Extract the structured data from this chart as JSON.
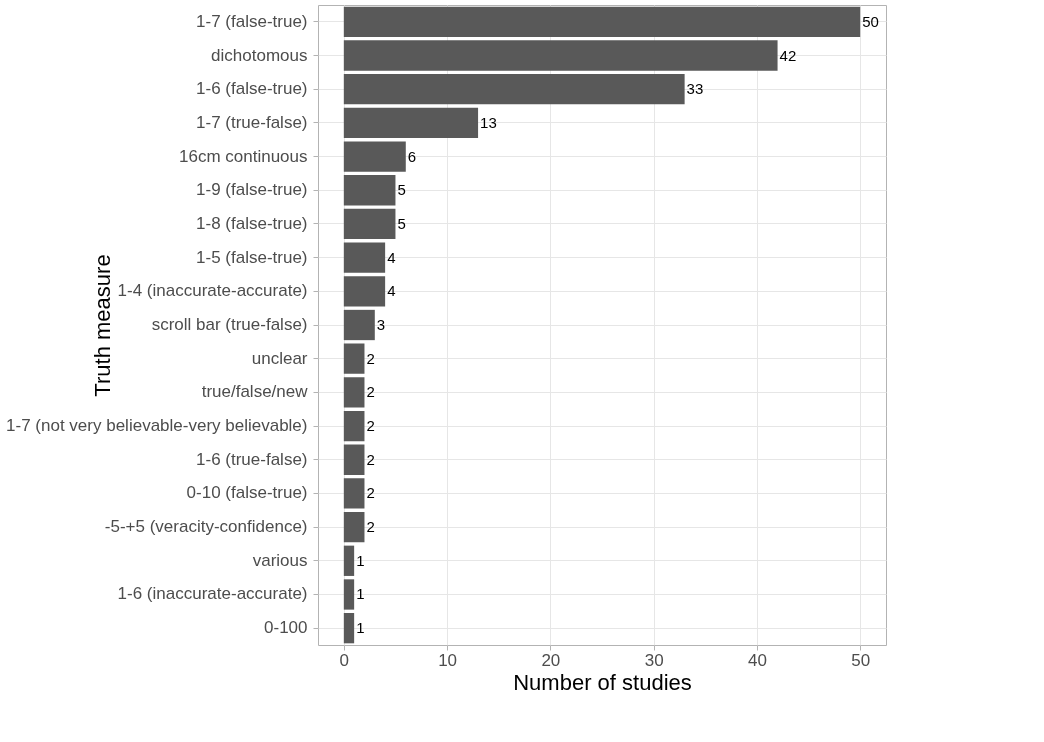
{
  "chart_data": {
    "type": "bar",
    "orientation": "horizontal",
    "xlabel": "Number of studies",
    "ylabel": "Truth measure",
    "categories": [
      "1-7 (false-true)",
      "dichotomous",
      "1-6 (false-true)",
      "1-7 (true-false)",
      "16cm continuous",
      "1-9 (false-true)",
      "1-8 (false-true)",
      "1-5 (false-true)",
      "1-4 (inaccurate-accurate)",
      "scroll bar (true-false)",
      "unclear",
      "true/false/new",
      "1-7 (not very believable-very believable)",
      "1-6 (true-false)",
      "0-10 (false-true)",
      "-5-+5 (veracity-confidence)",
      "various",
      "1-6 (inaccurate-accurate)",
      "0-100"
    ],
    "values": [
      50,
      42,
      33,
      13,
      6,
      5,
      5,
      4,
      4,
      3,
      2,
      2,
      2,
      2,
      2,
      2,
      1,
      1,
      1
    ],
    "color": "#595959",
    "xlim": [
      -2.5,
      52.5
    ],
    "xticks": [
      0,
      10,
      20,
      30,
      40,
      50
    ],
    "grid": true,
    "data_labels": true
  }
}
